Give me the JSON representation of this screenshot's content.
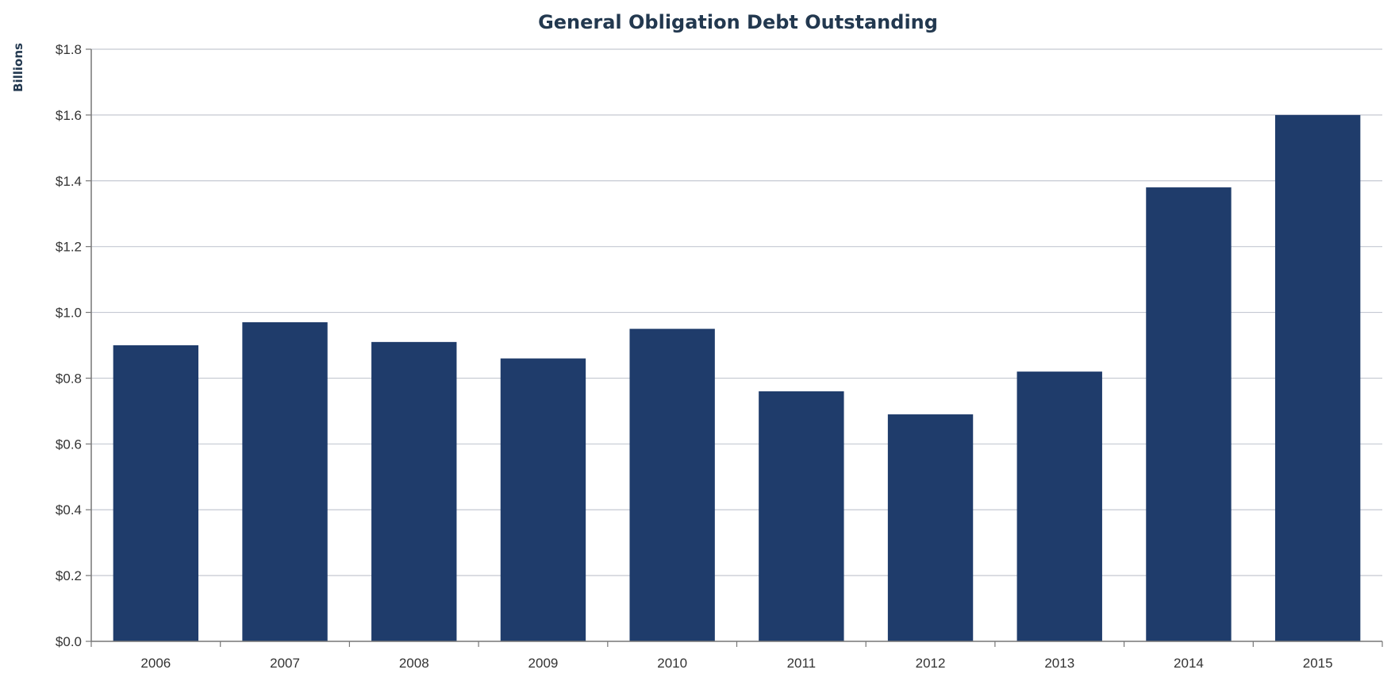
{
  "chart_data": {
    "type": "bar",
    "title": "General Obligation Debt Outstanding",
    "ylabel": "Billions",
    "xlabel": "",
    "categories": [
      "2006",
      "2007",
      "2008",
      "2009",
      "2010",
      "2011",
      "2012",
      "2013",
      "2014",
      "2015"
    ],
    "values": [
      0.9,
      0.97,
      0.91,
      0.86,
      0.95,
      0.76,
      0.69,
      0.82,
      1.38,
      1.6
    ],
    "ylim": [
      0,
      1.8
    ],
    "yticks": [
      "$0.0",
      "$0.2",
      "$0.4",
      "$0.6",
      "$0.8",
      "$1.0",
      "$1.2",
      "$1.4",
      "$1.6",
      "$1.8"
    ],
    "yticks_values": [
      0,
      0.2,
      0.4,
      0.6,
      0.8,
      1.0,
      1.2,
      1.4,
      1.6,
      1.8
    ],
    "grid": true,
    "legend": "none",
    "bar_color": "#1f3c6b"
  }
}
